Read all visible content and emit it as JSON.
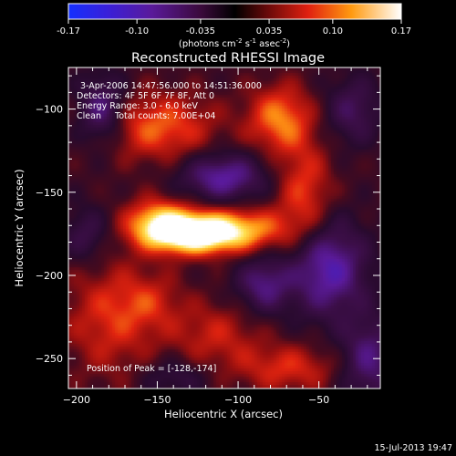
{
  "colorbar": {
    "ticks": [
      "-0.17",
      "-0.10",
      "-0.035",
      "0.035",
      "0.10",
      "0.17"
    ],
    "units_prefix": "(photons cm",
    "units_exp1": "-2",
    "units_mid": " s",
    "units_exp2": "-1",
    "units_mid2": " asec",
    "units_exp3": "-2",
    "units_suffix": ")",
    "range": [
      -0.17,
      0.17
    ]
  },
  "plot": {
    "title": "Reconstructed RHESSI Image",
    "info_lines": [
      "3-Apr-2006 14:47:56.000 to 14:51:36.000",
      "Detectors: 4F 5F 6F 7F 8F, Att 0",
      "Energy Range: 3.0 - 6.0 keV",
      "Clean     Total counts: 7.00E+04"
    ],
    "peak_label": "Position of Peak = [-128,-174]",
    "footer_timestamp": "15-Jul-2013 19:47"
  },
  "chart_data": {
    "type": "heatmap",
    "title": "Reconstructed RHESSI Image",
    "xlabel": "Heliocentric X (arcsec)",
    "ylabel": "Heliocentric Y (arcsec)",
    "xlim": [
      -205,
      -12
    ],
    "ylim": [
      -268,
      -75
    ],
    "xticks": [
      -200,
      -150,
      -100,
      -50
    ],
    "yticks": [
      -100,
      -150,
      -200,
      -250
    ],
    "colorscale": "RHESSI blue-purple-red-yellow-white",
    "value_range": [
      -0.17,
      0.17
    ],
    "peak_position": [
      -128,
      -174
    ],
    "blobs": [
      {
        "x": -128,
        "y": -174,
        "value": 0.17,
        "sx": 18,
        "sy": 8
      },
      {
        "x": -150,
        "y": -168,
        "value": 0.12,
        "sx": 14,
        "sy": 10
      },
      {
        "x": -100,
        "y": -172,
        "value": 0.1,
        "sx": 22,
        "sy": 9
      },
      {
        "x": -75,
        "y": -105,
        "value": 0.09,
        "sx": 14,
        "sy": 14
      },
      {
        "x": -150,
        "y": -110,
        "value": 0.08,
        "sx": 24,
        "sy": 14
      },
      {
        "x": -60,
        "y": -150,
        "value": 0.07,
        "sx": 12,
        "sy": 22
      },
      {
        "x": -180,
        "y": -225,
        "value": 0.06,
        "sx": 20,
        "sy": 24
      },
      {
        "x": -115,
        "y": -235,
        "value": 0.05,
        "sx": 20,
        "sy": 14
      },
      {
        "x": -70,
        "y": -255,
        "value": 0.06,
        "sx": 22,
        "sy": 10
      },
      {
        "x": -155,
        "y": -215,
        "value": 0.04,
        "sx": 14,
        "sy": 12
      },
      {
        "x": -185,
        "y": -100,
        "value": -0.09,
        "sx": 10,
        "sy": 14
      },
      {
        "x": -110,
        "y": -140,
        "value": -0.1,
        "sx": 18,
        "sy": 10
      },
      {
        "x": -45,
        "y": -195,
        "value": -0.11,
        "sx": 16,
        "sy": 20
      },
      {
        "x": -85,
        "y": -205,
        "value": -0.08,
        "sx": 12,
        "sy": 12
      },
      {
        "x": -30,
        "y": -100,
        "value": -0.06,
        "sx": 12,
        "sy": 14
      },
      {
        "x": -20,
        "y": -250,
        "value": -0.08,
        "sx": 12,
        "sy": 18
      },
      {
        "x": -195,
        "y": -175,
        "value": -0.05,
        "sx": 10,
        "sy": 12
      },
      {
        "x": -140,
        "y": -260,
        "value": -0.04,
        "sx": 14,
        "sy": 8
      }
    ]
  }
}
